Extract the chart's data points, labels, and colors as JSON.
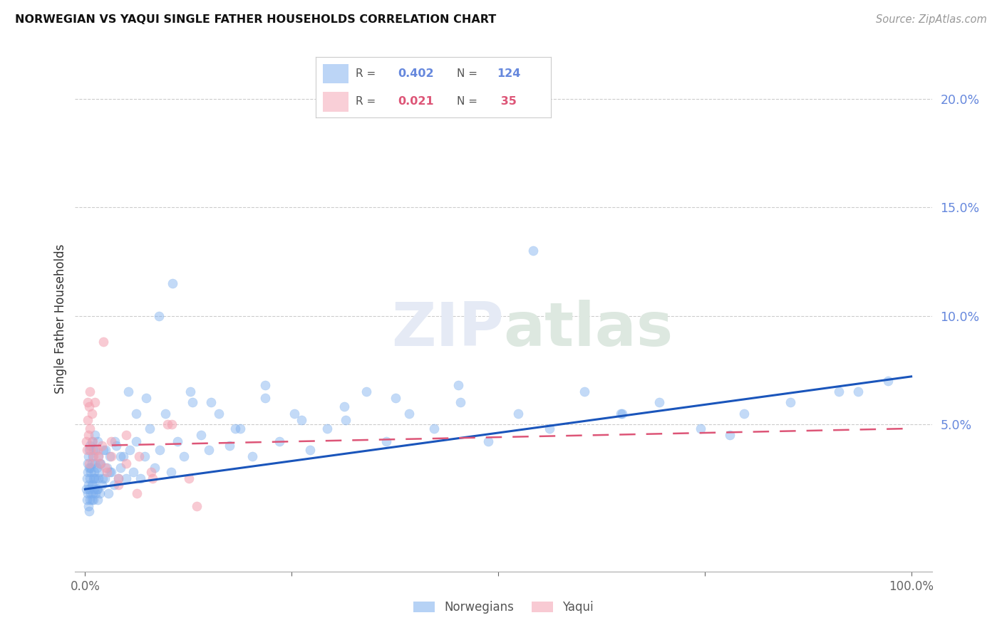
{
  "title": "NORWEGIAN VS YAQUI SINGLE FATHER HOUSEHOLDS CORRELATION CHART",
  "source": "Source: ZipAtlas.com",
  "ylabel": "Single Father Households",
  "blue_color": "#7aadee",
  "pink_color": "#f4a0b0",
  "blue_line_color": "#1a55bb",
  "pink_line_color": "#dd5577",
  "ytick_color": "#6688dd",
  "R_norwegian": 0.402,
  "N_norwegian": 124,
  "R_yaqui": 0.021,
  "N_yaqui": 35,
  "xlim": [
    -0.012,
    1.025
  ],
  "ylim": [
    -0.018,
    0.215
  ],
  "nor_x": [
    0.001,
    0.002,
    0.002,
    0.003,
    0.003,
    0.003,
    0.004,
    0.004,
    0.004,
    0.005,
    0.005,
    0.005,
    0.006,
    0.006,
    0.006,
    0.007,
    0.007,
    0.008,
    0.008,
    0.008,
    0.009,
    0.009,
    0.01,
    0.01,
    0.01,
    0.011,
    0.011,
    0.012,
    0.012,
    0.013,
    0.013,
    0.014,
    0.014,
    0.015,
    0.015,
    0.016,
    0.016,
    0.017,
    0.018,
    0.019,
    0.02,
    0.022,
    0.024,
    0.026,
    0.028,
    0.03,
    0.032,
    0.035,
    0.038,
    0.04,
    0.043,
    0.046,
    0.05,
    0.054,
    0.058,
    0.062,
    0.067,
    0.072,
    0.078,
    0.084,
    0.09,
    0.097,
    0.104,
    0.112,
    0.12,
    0.13,
    0.14,
    0.15,
    0.162,
    0.175,
    0.188,
    0.202,
    0.218,
    0.235,
    0.253,
    0.272,
    0.293,
    0.315,
    0.34,
    0.365,
    0.392,
    0.422,
    0.454,
    0.488,
    0.524,
    0.562,
    0.604,
    0.648,
    0.695,
    0.745,
    0.798,
    0.854,
    0.912,
    0.972,
    0.007,
    0.009,
    0.011,
    0.013,
    0.015,
    0.018,
    0.021,
    0.025,
    0.03,
    0.036,
    0.043,
    0.052,
    0.062,
    0.074,
    0.089,
    0.106,
    0.127,
    0.152,
    0.182,
    0.218,
    0.262,
    0.314,
    0.376,
    0.452,
    0.542,
    0.65,
    0.78,
    0.936,
    0.005,
    0.008
  ],
  "nor_y": [
    0.02,
    0.025,
    0.015,
    0.028,
    0.018,
    0.032,
    0.022,
    0.035,
    0.012,
    0.03,
    0.02,
    0.038,
    0.025,
    0.015,
    0.04,
    0.028,
    0.018,
    0.032,
    0.022,
    0.042,
    0.018,
    0.035,
    0.025,
    0.015,
    0.038,
    0.028,
    0.02,
    0.032,
    0.045,
    0.025,
    0.038,
    0.02,
    0.03,
    0.015,
    0.042,
    0.025,
    0.035,
    0.028,
    0.018,
    0.032,
    0.022,
    0.038,
    0.025,
    0.03,
    0.018,
    0.035,
    0.028,
    0.022,
    0.04,
    0.025,
    0.03,
    0.035,
    0.025,
    0.038,
    0.028,
    0.042,
    0.025,
    0.035,
    0.048,
    0.03,
    0.038,
    0.055,
    0.028,
    0.042,
    0.035,
    0.06,
    0.045,
    0.038,
    0.055,
    0.04,
    0.048,
    0.035,
    0.062,
    0.042,
    0.055,
    0.038,
    0.048,
    0.052,
    0.065,
    0.042,
    0.055,
    0.048,
    0.06,
    0.042,
    0.055,
    0.048,
    0.065,
    0.055,
    0.06,
    0.048,
    0.055,
    0.06,
    0.065,
    0.07,
    0.03,
    0.022,
    0.025,
    0.018,
    0.02,
    0.032,
    0.025,
    0.038,
    0.028,
    0.042,
    0.035,
    0.065,
    0.055,
    0.062,
    0.1,
    0.115,
    0.065,
    0.06,
    0.048,
    0.068,
    0.052,
    0.058,
    0.062,
    0.068,
    0.13,
    0.055,
    0.045,
    0.065,
    0.01,
    0.015
  ],
  "yaq_x": [
    0.001,
    0.002,
    0.003,
    0.003,
    0.004,
    0.005,
    0.005,
    0.006,
    0.006,
    0.007,
    0.008,
    0.009,
    0.01,
    0.012,
    0.015,
    0.018,
    0.022,
    0.026,
    0.032,
    0.04,
    0.05,
    0.063,
    0.08,
    0.1,
    0.126,
    0.016,
    0.02,
    0.025,
    0.032,
    0.04,
    0.05,
    0.065,
    0.082,
    0.105,
    0.135
  ],
  "yaq_y": [
    0.042,
    0.038,
    0.052,
    0.06,
    0.045,
    0.058,
    0.032,
    0.048,
    0.065,
    0.038,
    0.055,
    0.042,
    0.035,
    0.06,
    0.038,
    0.032,
    0.088,
    0.028,
    0.035,
    0.025,
    0.032,
    0.018,
    0.028,
    0.05,
    0.025,
    0.035,
    0.04,
    0.03,
    0.042,
    0.022,
    0.045,
    0.035,
    0.025,
    0.05,
    0.012
  ]
}
